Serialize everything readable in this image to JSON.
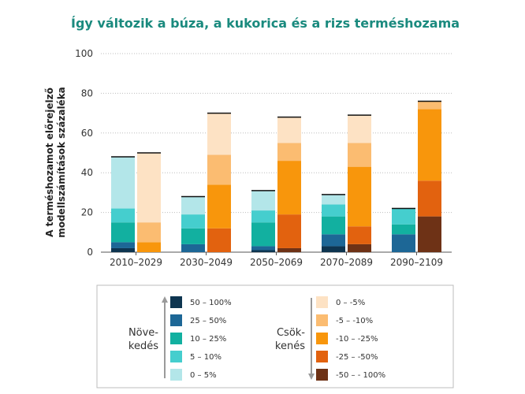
{
  "chart_data": {
    "type": "bar",
    "title": "Így változik a búza, a kukorica és a rizs terméshozama",
    "ylabel": [
      "A terméshozamot előrejelző",
      "modellszámítások százaléka"
    ],
    "ylim": [
      0,
      100
    ],
    "yticks": [
      "0",
      "20",
      "40",
      "60",
      "80",
      "100"
    ],
    "categories": [
      "2010–2029",
      "2030–2049",
      "2050–2069",
      "2070–2089",
      "2090–2109"
    ],
    "bar_groups": [
      "Növekedés",
      "Csökkenés"
    ],
    "series": [
      {
        "name": "50 – 100%",
        "group": "Növekedés",
        "color": "#0e3550",
        "values": [
          2,
          0,
          1,
          3,
          0
        ]
      },
      {
        "name": "25 – 50%",
        "group": "Növekedés",
        "color": "#1d6796",
        "values": [
          3,
          4,
          2,
          6,
          9
        ]
      },
      {
        "name": "10 – 25%",
        "group": "Növekedés",
        "color": "#12b0a0",
        "values": [
          10,
          8,
          12,
          9,
          5
        ]
      },
      {
        "name": "5 – 10%",
        "group": "Növekedés",
        "color": "#45cece",
        "values": [
          7,
          7,
          6,
          6,
          8
        ]
      },
      {
        "name": "0 – 5%",
        "group": "Növekedés",
        "color": "#b3e6e9",
        "values": [
          26,
          9,
          10,
          5,
          0
        ]
      },
      {
        "name": "-50 – - 100%",
        "group": "Csökkenés",
        "color": "#6e3216",
        "values": [
          0,
          0,
          2,
          4,
          18
        ]
      },
      {
        "name": "-25 – -50%",
        "group": "Csökkenés",
        "color": "#e2620f",
        "values": [
          0,
          12,
          17,
          9,
          18
        ]
      },
      {
        "name": "-10 – -25%",
        "group": "Csökkenés",
        "color": "#f8960c",
        "values": [
          5,
          22,
          27,
          30,
          36
        ]
      },
      {
        "name": "-5 – -10%",
        "group": "Csökkenés",
        "color": "#fbbc71",
        "values": [
          10,
          15,
          9,
          12,
          4
        ]
      },
      {
        "name": "0 – -5%",
        "group": "Csökkenés",
        "color": "#fde2c4",
        "values": [
          35,
          21,
          13,
          14,
          0
        ]
      }
    ],
    "legend": {
      "increase_label": [
        "Növe-",
        "kedés"
      ],
      "decrease_label": [
        "Csök-",
        "kenés"
      ],
      "increase_items": [
        {
          "label": "50 – 100%",
          "color": "#0e3550"
        },
        {
          "label": "25 – 50%",
          "color": "#1d6796"
        },
        {
          "label": "10 – 25%",
          "color": "#12b0a0"
        },
        {
          "label": "5 – 10%",
          "color": "#45cece"
        },
        {
          "label": "0 – 5%",
          "color": "#b3e6e9"
        }
      ],
      "decrease_items": [
        {
          "label": "0 –  -5%",
          "color": "#fde2c4"
        },
        {
          "label": "-5 –  -10%",
          "color": "#fbbc71"
        },
        {
          "label": "-10 –  -25%",
          "color": "#f8960c"
        },
        {
          "label": "-25 –  -50%",
          "color": "#e2620f"
        },
        {
          "label": "-50 – -  100%",
          "color": "#6e3216"
        }
      ]
    },
    "grid": true,
    "legend_position": "bottom"
  }
}
